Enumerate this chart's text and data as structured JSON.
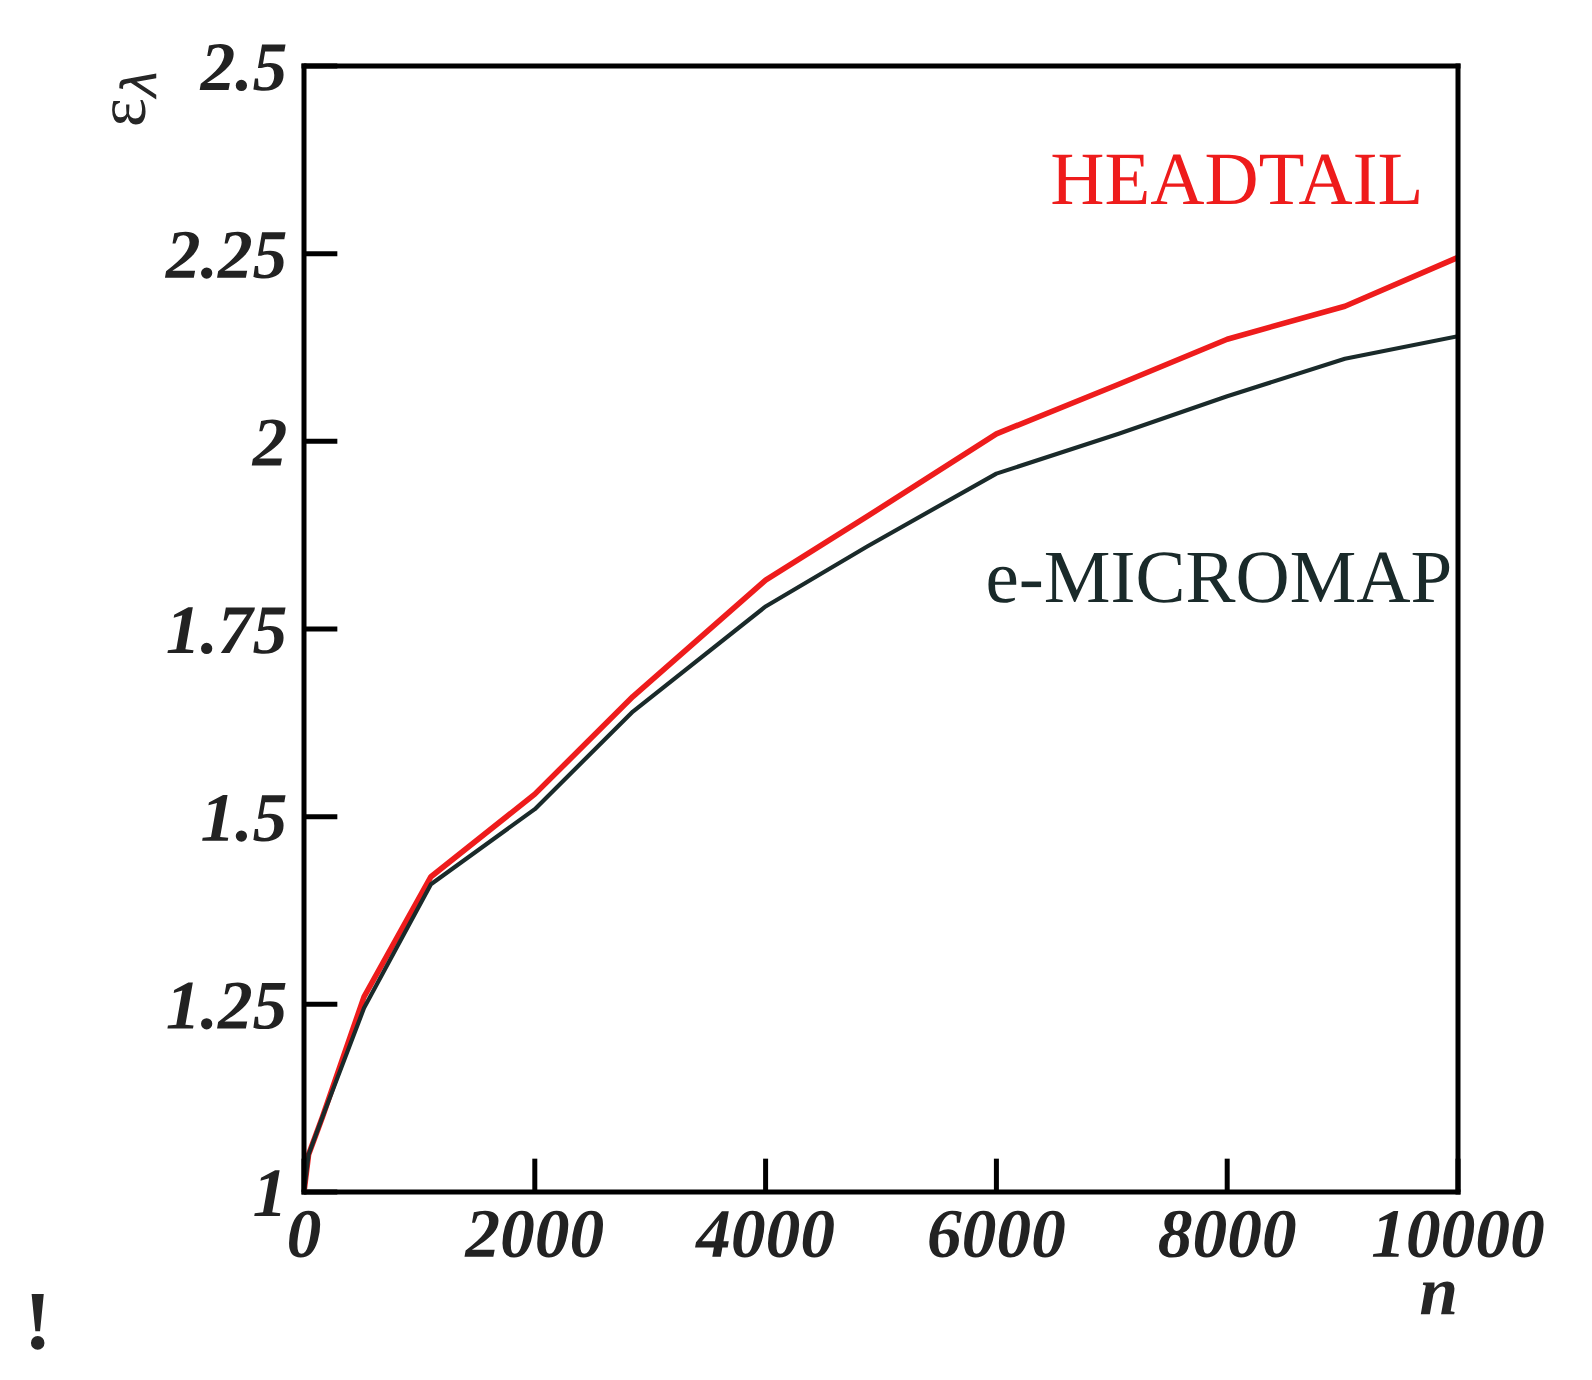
{
  "chart_data": {
    "type": "line",
    "xlabel": "n",
    "ylabel": "ε$_{λ}$",
    "xlim": [
      0,
      10000
    ],
    "ylim": [
      1,
      2.5
    ],
    "xticks": [
      0,
      2000,
      4000,
      6000,
      8000,
      10000
    ],
    "yticks": [
      1,
      {
        "value": 1.25,
        "label": "1.25"
      },
      {
        "value": 1.5,
        "label": "1.5"
      },
      {
        "value": 1.75,
        "label": "1.75"
      },
      2,
      {
        "value": 2.25,
        "label": "2.25"
      },
      {
        "value": 2.5,
        "label": "2.5"
      }
    ],
    "grid": false,
    "legend": false,
    "marker": "none",
    "line_style": "solid",
    "series": [
      {
        "name": "HEADTAIL",
        "color": "#ee1c1c",
        "x": [
          0,
          40,
          160,
          520,
          1100,
          2000,
          2850,
          4000,
          4880,
          6000,
          7060,
          8000,
          9020,
          10000
        ],
        "values": [
          1.0,
          1.05,
          1.1,
          1.26,
          1.42,
          1.53,
          1.66,
          1.815,
          1.9,
          2.01,
          2.076,
          2.136,
          2.18,
          2.245
        ]
      },
      {
        "name": "e-MICROMAP",
        "color": "#1a2a2a",
        "x": [
          0,
          40,
          160,
          520,
          1100,
          2000,
          2850,
          4000,
          4880,
          6000,
          7060,
          8000,
          9020,
          10000
        ],
        "values": [
          1.0,
          1.05,
          1.1,
          1.245,
          1.41,
          1.51,
          1.64,
          1.78,
          1.86,
          1.957,
          2.01,
          2.06,
          2.11,
          2.14
        ]
      }
    ],
    "annotations": [
      "!"
    ]
  }
}
